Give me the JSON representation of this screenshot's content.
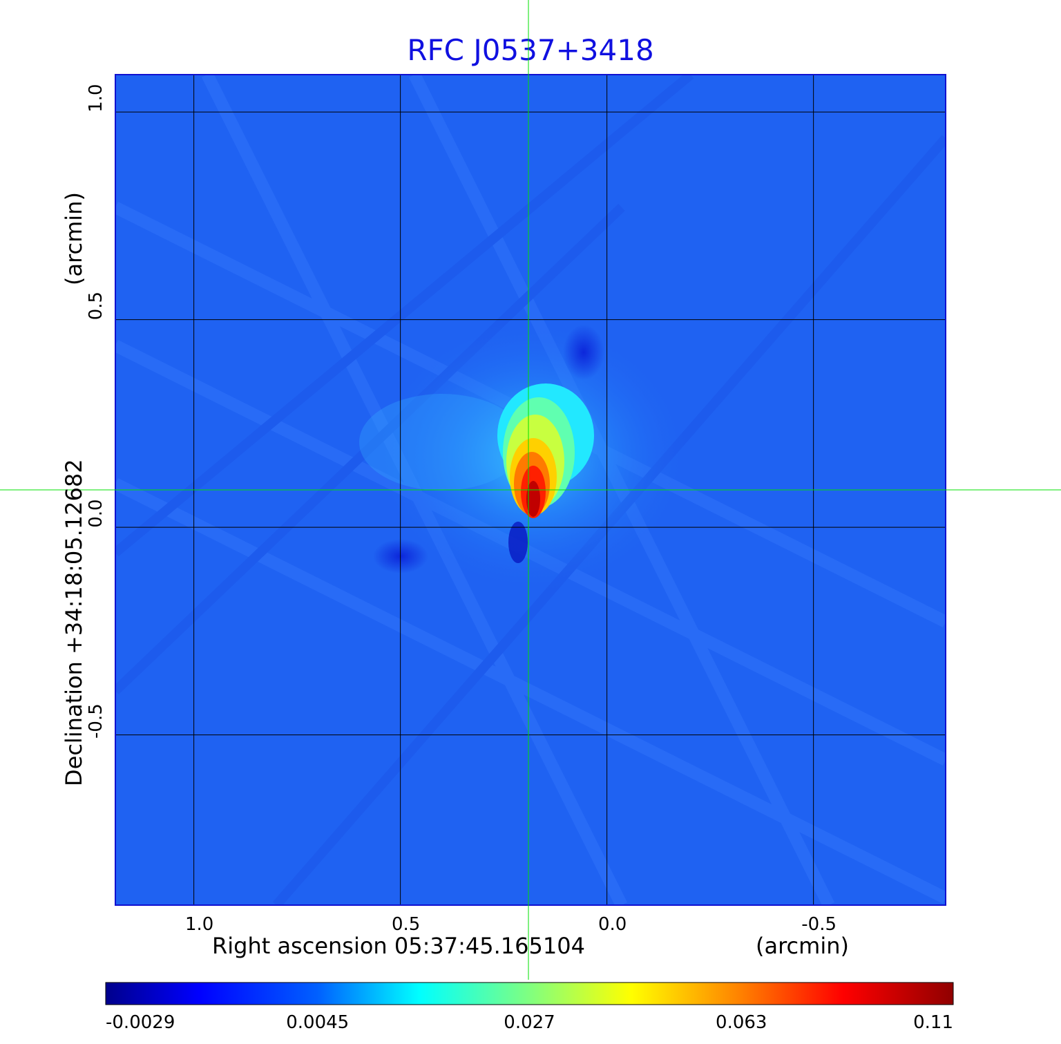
{
  "title": "RFC J0537+3418",
  "colors": {
    "title": "#1010e0",
    "grid": "#000000",
    "crosshair": "#00e000",
    "frame": "#1010d0"
  },
  "chart_data": {
    "type": "heatmap",
    "title": "RFC J0537+3418",
    "xlabel": "Right ascension  05:37:45.165104",
    "xunit": "(arcmin)",
    "ylabel": "Declination  +34:18:05.12682",
    "yunit": "(arcmin)",
    "xlim": [
      1.19,
      -0.82
    ],
    "ylim": [
      -0.91,
      1.09
    ],
    "x_ticks": [
      {
        "value": 1.0,
        "label": "1.0"
      },
      {
        "value": 0.5,
        "label": "0.5"
      },
      {
        "value": 0.0,
        "label": "0.0"
      },
      {
        "value": -0.5,
        "label": "-0.5"
      }
    ],
    "y_ticks": [
      {
        "value": 1.0,
        "label": "1.0"
      },
      {
        "value": 0.5,
        "label": "0.5"
      },
      {
        "value": 0.0,
        "label": "0.0"
      },
      {
        "value": -0.5,
        "label": "-0.5"
      }
    ],
    "grid": true,
    "crosshair": {
      "x": 0.19,
      "y": 0.09
    },
    "peak": {
      "x": 0.18,
      "y": 0.05,
      "value": 0.11
    },
    "colorbar": {
      "colormap": "jet",
      "ticks": [
        {
          "value": -0.0029,
          "label": "-0.0029"
        },
        {
          "value": 0.0045,
          "label": "0.0045"
        },
        {
          "value": 0.027,
          "label": "0.027"
        },
        {
          "value": 0.063,
          "label": "0.063"
        },
        {
          "value": 0.11,
          "label": "0.11"
        }
      ]
    }
  }
}
